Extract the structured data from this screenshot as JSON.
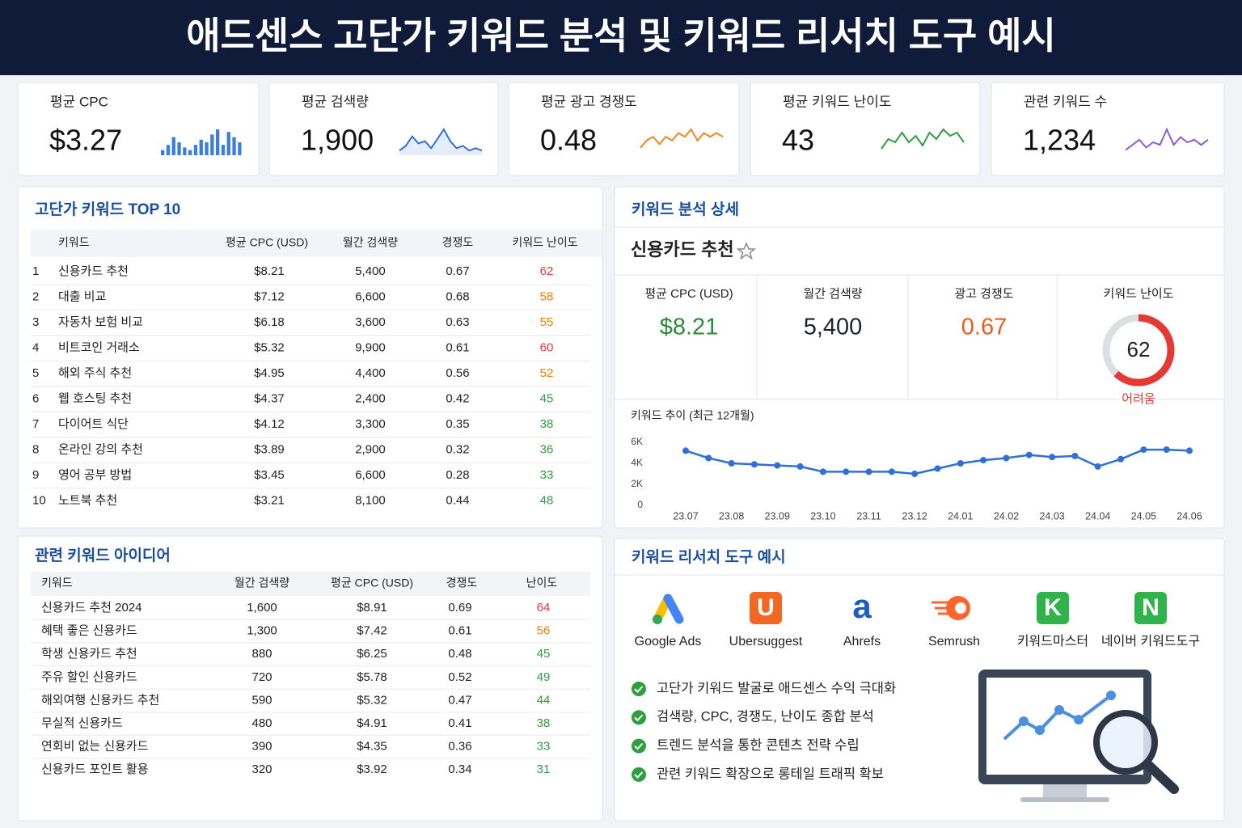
{
  "header": {
    "title": "애드센스 고단가 키워드 분석 및 키워드 리서치 도구 예시"
  },
  "kpis": [
    {
      "label": "평균 CPC",
      "value": "$3.27",
      "spark_type": "bar",
      "color": "#3b7ddd",
      "spark": [
        2,
        4,
        7,
        5,
        3,
        2,
        4,
        6,
        5,
        8,
        10,
        4,
        9,
        7,
        5
      ]
    },
    {
      "label": "평균 검색량",
      "value": "1,900",
      "spark_type": "line",
      "color": "#2f6fd6",
      "spark": [
        2,
        4,
        8,
        5,
        6,
        3,
        7,
        11,
        6,
        3,
        4,
        2,
        3,
        2
      ]
    },
    {
      "label": "평균 광고 경쟁도",
      "value": "0.48",
      "spark_type": "line",
      "color": "#f5841f",
      "spark": [
        2,
        4,
        5,
        3,
        5,
        4,
        6,
        5,
        7,
        4,
        6,
        5,
        6,
        5
      ]
    },
    {
      "label": "평균 키워드 난이도",
      "value": "43",
      "spark_type": "line",
      "color": "#2e9e3e",
      "spark": [
        2,
        5,
        4,
        7,
        4,
        6,
        3,
        7,
        5,
        8,
        6,
        7,
        4
      ]
    },
    {
      "label": "관련 키워드 수",
      "value": "1,234",
      "spark_type": "line",
      "color": "#8e5bd6",
      "spark": [
        2,
        4,
        6,
        3,
        5,
        4,
        10,
        4,
        7,
        5,
        6,
        4,
        6
      ]
    }
  ],
  "top10": {
    "title": "고단가 키워드 TOP 10",
    "columns": [
      "키워드",
      "평균 CPC (USD)",
      "월간 검색량",
      "경쟁도",
      "키워드 난이도"
    ],
    "rows": [
      [
        1,
        "신용카드 추천",
        "$8.21",
        "5,400",
        0.67,
        62
      ],
      [
        2,
        "대출 비교",
        "$7.12",
        "6,600",
        0.68,
        58
      ],
      [
        3,
        "자동차 보험 비교",
        "$6.18",
        "3,600",
        0.63,
        55
      ],
      [
        4,
        "비트코인 거래소",
        "$5.32",
        "9,900",
        0.61,
        60
      ],
      [
        5,
        "해외 주식 추천",
        "$4.95",
        "4,400",
        0.56,
        52
      ],
      [
        6,
        "웹 호스팅 추천",
        "$4.37",
        "2,400",
        0.42,
        45
      ],
      [
        7,
        "다이어트 식단",
        "$4.12",
        "3,300",
        0.35,
        38
      ],
      [
        8,
        "온라인 강의 추천",
        "$3.89",
        "2,900",
        0.32,
        36
      ],
      [
        9,
        "영어 공부 방법",
        "$3.45",
        "6,600",
        0.28,
        33
      ],
      [
        10,
        "노트북 추천",
        "$3.21",
        "8,100",
        0.44,
        48
      ]
    ],
    "difficulty_colors": [
      "#e53935",
      "#f57c00",
      "#f57c00",
      "#e53935",
      "#f57c00",
      "#2e9e3e",
      "#2e9e3e",
      "#2e9e3e",
      "#2e9e3e",
      "#2e9e3e"
    ]
  },
  "related": {
    "title": "관련 키워드 아이디어",
    "columns": [
      "키워드",
      "월간 검색량",
      "평균 CPC (USD)",
      "경쟁도",
      "난이도"
    ],
    "rows": [
      [
        "신용카드 추천 2024",
        "1,600",
        "$8.91",
        0.69,
        64
      ],
      [
        "혜택 좋은 신용카드",
        "1,300",
        "$7.42",
        0.61,
        56
      ],
      [
        "학생 신용카드 추천",
        "880",
        "$6.25",
        0.48,
        45
      ],
      [
        "주유 할인 신용카드",
        "720",
        "$5.78",
        0.52,
        49
      ],
      [
        "해외여행 신용카드 추천",
        "590",
        "$5.32",
        0.47,
        44
      ],
      [
        "무실적 신용카드",
        "480",
        "$4.91",
        0.41,
        38
      ],
      [
        "연회비 없는 신용카드",
        "390",
        "$4.35",
        0.36,
        33
      ],
      [
        "신용카드 포인트 활용",
        "320",
        "$3.92",
        0.34,
        31
      ]
    ],
    "difficulty_colors": [
      "#e53935",
      "#f57c00",
      "#2e9e3e",
      "#2e9e3e",
      "#2e9e3e",
      "#2e9e3e",
      "#2e9e3e",
      "#2e9e3e"
    ]
  },
  "detail": {
    "title": "키워드 분석 상세",
    "keyword": "신용카드 추천",
    "metrics": [
      {
        "label": "평균 CPC (USD)",
        "value": "$8.21",
        "color": "#2e8b3a"
      },
      {
        "label": "월간 검색량",
        "value": "5,400",
        "color": "#1f2329"
      },
      {
        "label": "광고 경쟁도",
        "value": "0.67",
        "color": "#f05a22"
      }
    ],
    "difficulty": {
      "label": "키워드 난이도",
      "value": 62,
      "lim": [
        0,
        100
      ],
      "status": "어려움",
      "color": "#e53935"
    }
  },
  "trend": {
    "type": "line",
    "title": "키워드 추이 (최근 12개월)",
    "color": "#2f6fd6",
    "categories": [
      "23.07",
      null,
      "23.08",
      null,
      "23.09",
      null,
      "23.10",
      null,
      "23.11",
      null,
      "23.12",
      null,
      "24.01",
      null,
      "24.02",
      null,
      "24.03",
      null,
      "24.04",
      null,
      "24.05",
      null,
      "24.06"
    ],
    "values": [
      5200,
      4500,
      4000,
      3900,
      3800,
      3700,
      3200,
      3200,
      3200,
      3200,
      3000,
      3500,
      4000,
      4300,
      4500,
      4800,
      4600,
      4700,
      3700,
      4400,
      5300,
      5300,
      5200
    ],
    "ylim": [
      0,
      6000
    ],
    "yticks": [
      0,
      {
        "value": 2000,
        "label": "2K"
      },
      {
        "value": 4000,
        "label": "4K"
      },
      {
        "value": 6000,
        "label": "6K"
      }
    ]
  },
  "tools": {
    "title": "키워드 리서치 도구 예시",
    "items": [
      {
        "name": "Google Ads"
      },
      {
        "name": "Ubersuggest",
        "icon": "U",
        "bg": "#f26722"
      },
      {
        "name": "Ahrefs",
        "icon": "a",
        "fg": "#1d5ebd"
      },
      {
        "name": "Semrush"
      },
      {
        "name": "키워드마스터",
        "icon": "K",
        "bg": "#2fb34a"
      },
      {
        "name": "네이버 키워드도구",
        "icon": "N",
        "bg": "#2fb34a"
      }
    ],
    "features": [
      "고단가 키워드 발굴로 애드센스 수익 극대화",
      "검색량, CPC, 경쟁도, 난이도 종합 분석",
      "트렌드 분석을 통한 콘텐츠 전략 수립",
      "관련 키워드 확장으로 롱테일 트래픽 확보"
    ]
  }
}
